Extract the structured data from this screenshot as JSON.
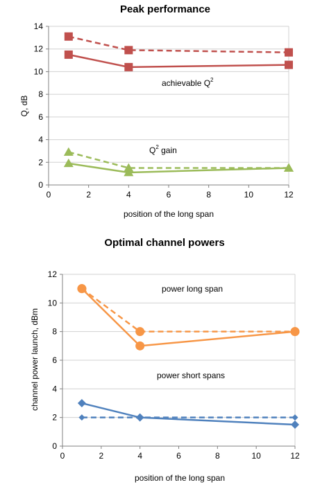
{
  "chart_data": [
    {
      "type": "line",
      "title": "Peak performance",
      "xlabel": "position of the long span",
      "ylabel": "Q, dB",
      "xlim": [
        0,
        12
      ],
      "ylim": [
        0,
        14
      ],
      "xticks": [
        0,
        2,
        4,
        6,
        8,
        10,
        12
      ],
      "yticks": [
        0,
        2,
        4,
        6,
        8,
        10,
        12,
        14
      ],
      "grid": "horizontal",
      "x": [
        1,
        4,
        12
      ],
      "series": [
        {
          "values": [
            11.5,
            10.4,
            10.6
          ],
          "color": "#c0504d",
          "style": "solid",
          "marker": "square"
        },
        {
          "values": [
            13.1,
            11.9,
            11.7
          ],
          "color": "#c0504d",
          "style": "dashed",
          "marker": "square"
        },
        {
          "values": [
            1.9,
            1.1,
            1.5
          ],
          "color": "#9bbb59",
          "style": "solid",
          "marker": "triangle"
        },
        {
          "values": [
            2.9,
            1.5,
            1.5
          ],
          "color": "#9bbb59",
          "style": "dashed",
          "marker": "triangle"
        }
      ],
      "annotations": [
        {
          "text": "achievable Q",
          "sup": "2"
        },
        {
          "text": "Q",
          "sup": "2",
          "text_after": " gain"
        }
      ]
    },
    {
      "type": "line",
      "title": "Optimal channel powers",
      "xlabel": "position of the long span",
      "ylabel": "channel power launch, dBm",
      "xlim": [
        0,
        12
      ],
      "ylim": [
        0,
        12
      ],
      "xticks": [
        0,
        2,
        4,
        6,
        8,
        10,
        12
      ],
      "yticks": [
        0,
        2,
        4,
        6,
        8,
        10,
        12
      ],
      "grid": "horizontal",
      "x": [
        1,
        4,
        12
      ],
      "series": [
        {
          "values": [
            11,
            7,
            8
          ],
          "color": "#f79646",
          "style": "solid",
          "marker": "circle"
        },
        {
          "values": [
            11,
            8,
            8
          ],
          "color": "#f79646",
          "style": "dashed",
          "marker": "circle"
        },
        {
          "values": [
            3,
            2,
            1.5
          ],
          "color": "#4f81bd",
          "style": "solid",
          "marker": "diamond"
        },
        {
          "values": [
            2,
            2,
            2
          ],
          "color": "#4f81bd",
          "style": "dashed",
          "marker": "diamond"
        }
      ],
      "annotations": [
        {
          "text": "power long span"
        },
        {
          "text": "power short spans"
        }
      ]
    }
  ]
}
